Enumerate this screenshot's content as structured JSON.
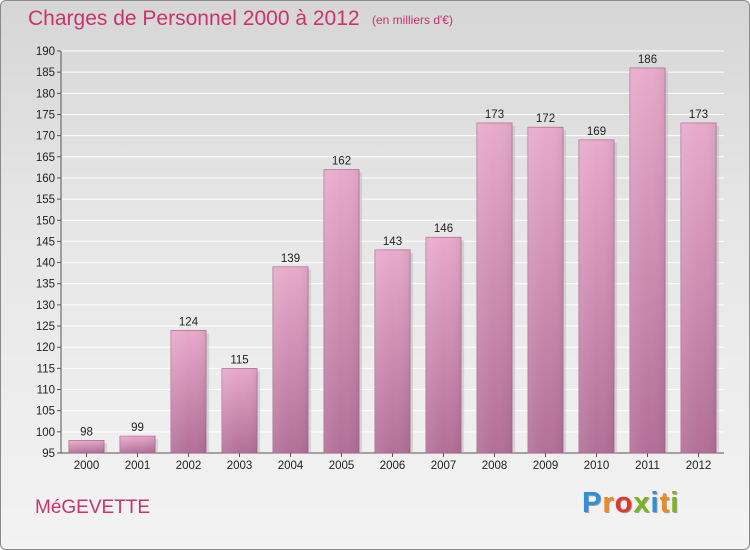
{
  "title": "Charges de Personnel 2000 à 2012",
  "subtitle": "(en milliers d'€)",
  "commune": "MéGEVETTE",
  "logo": {
    "letters": [
      "P",
      "r",
      "o",
      "x",
      "i",
      "t",
      "i"
    ],
    "colors": [
      "#2f8fd8",
      "#f08a1c",
      "#e3342f",
      "#7ab51d",
      "#2f8fd8",
      "#f08a1c",
      "#7ab51d"
    ]
  },
  "colors": {
    "accent": "#c8336e",
    "bar_light": "#e8aacb",
    "bar_dark": "#b26f97"
  },
  "chart_data": {
    "type": "bar",
    "title": "Charges de Personnel 2000 à 2012",
    "subtitle": "(en milliers d'€)",
    "xlabel": "",
    "ylabel": "",
    "categories": [
      "2000",
      "2001",
      "2002",
      "2003",
      "2004",
      "2005",
      "2006",
      "2007",
      "2008",
      "2009",
      "2010",
      "2011",
      "2012"
    ],
    "values": [
      98,
      99,
      124,
      115,
      139,
      162,
      143,
      146,
      173,
      172,
      169,
      186,
      173
    ],
    "ylim": [
      95,
      190
    ],
    "yticks": [
      95,
      100,
      105,
      110,
      115,
      120,
      125,
      130,
      135,
      140,
      145,
      150,
      155,
      160,
      165,
      170,
      175,
      180,
      185,
      190
    ],
    "grid": true,
    "legend": "none"
  }
}
